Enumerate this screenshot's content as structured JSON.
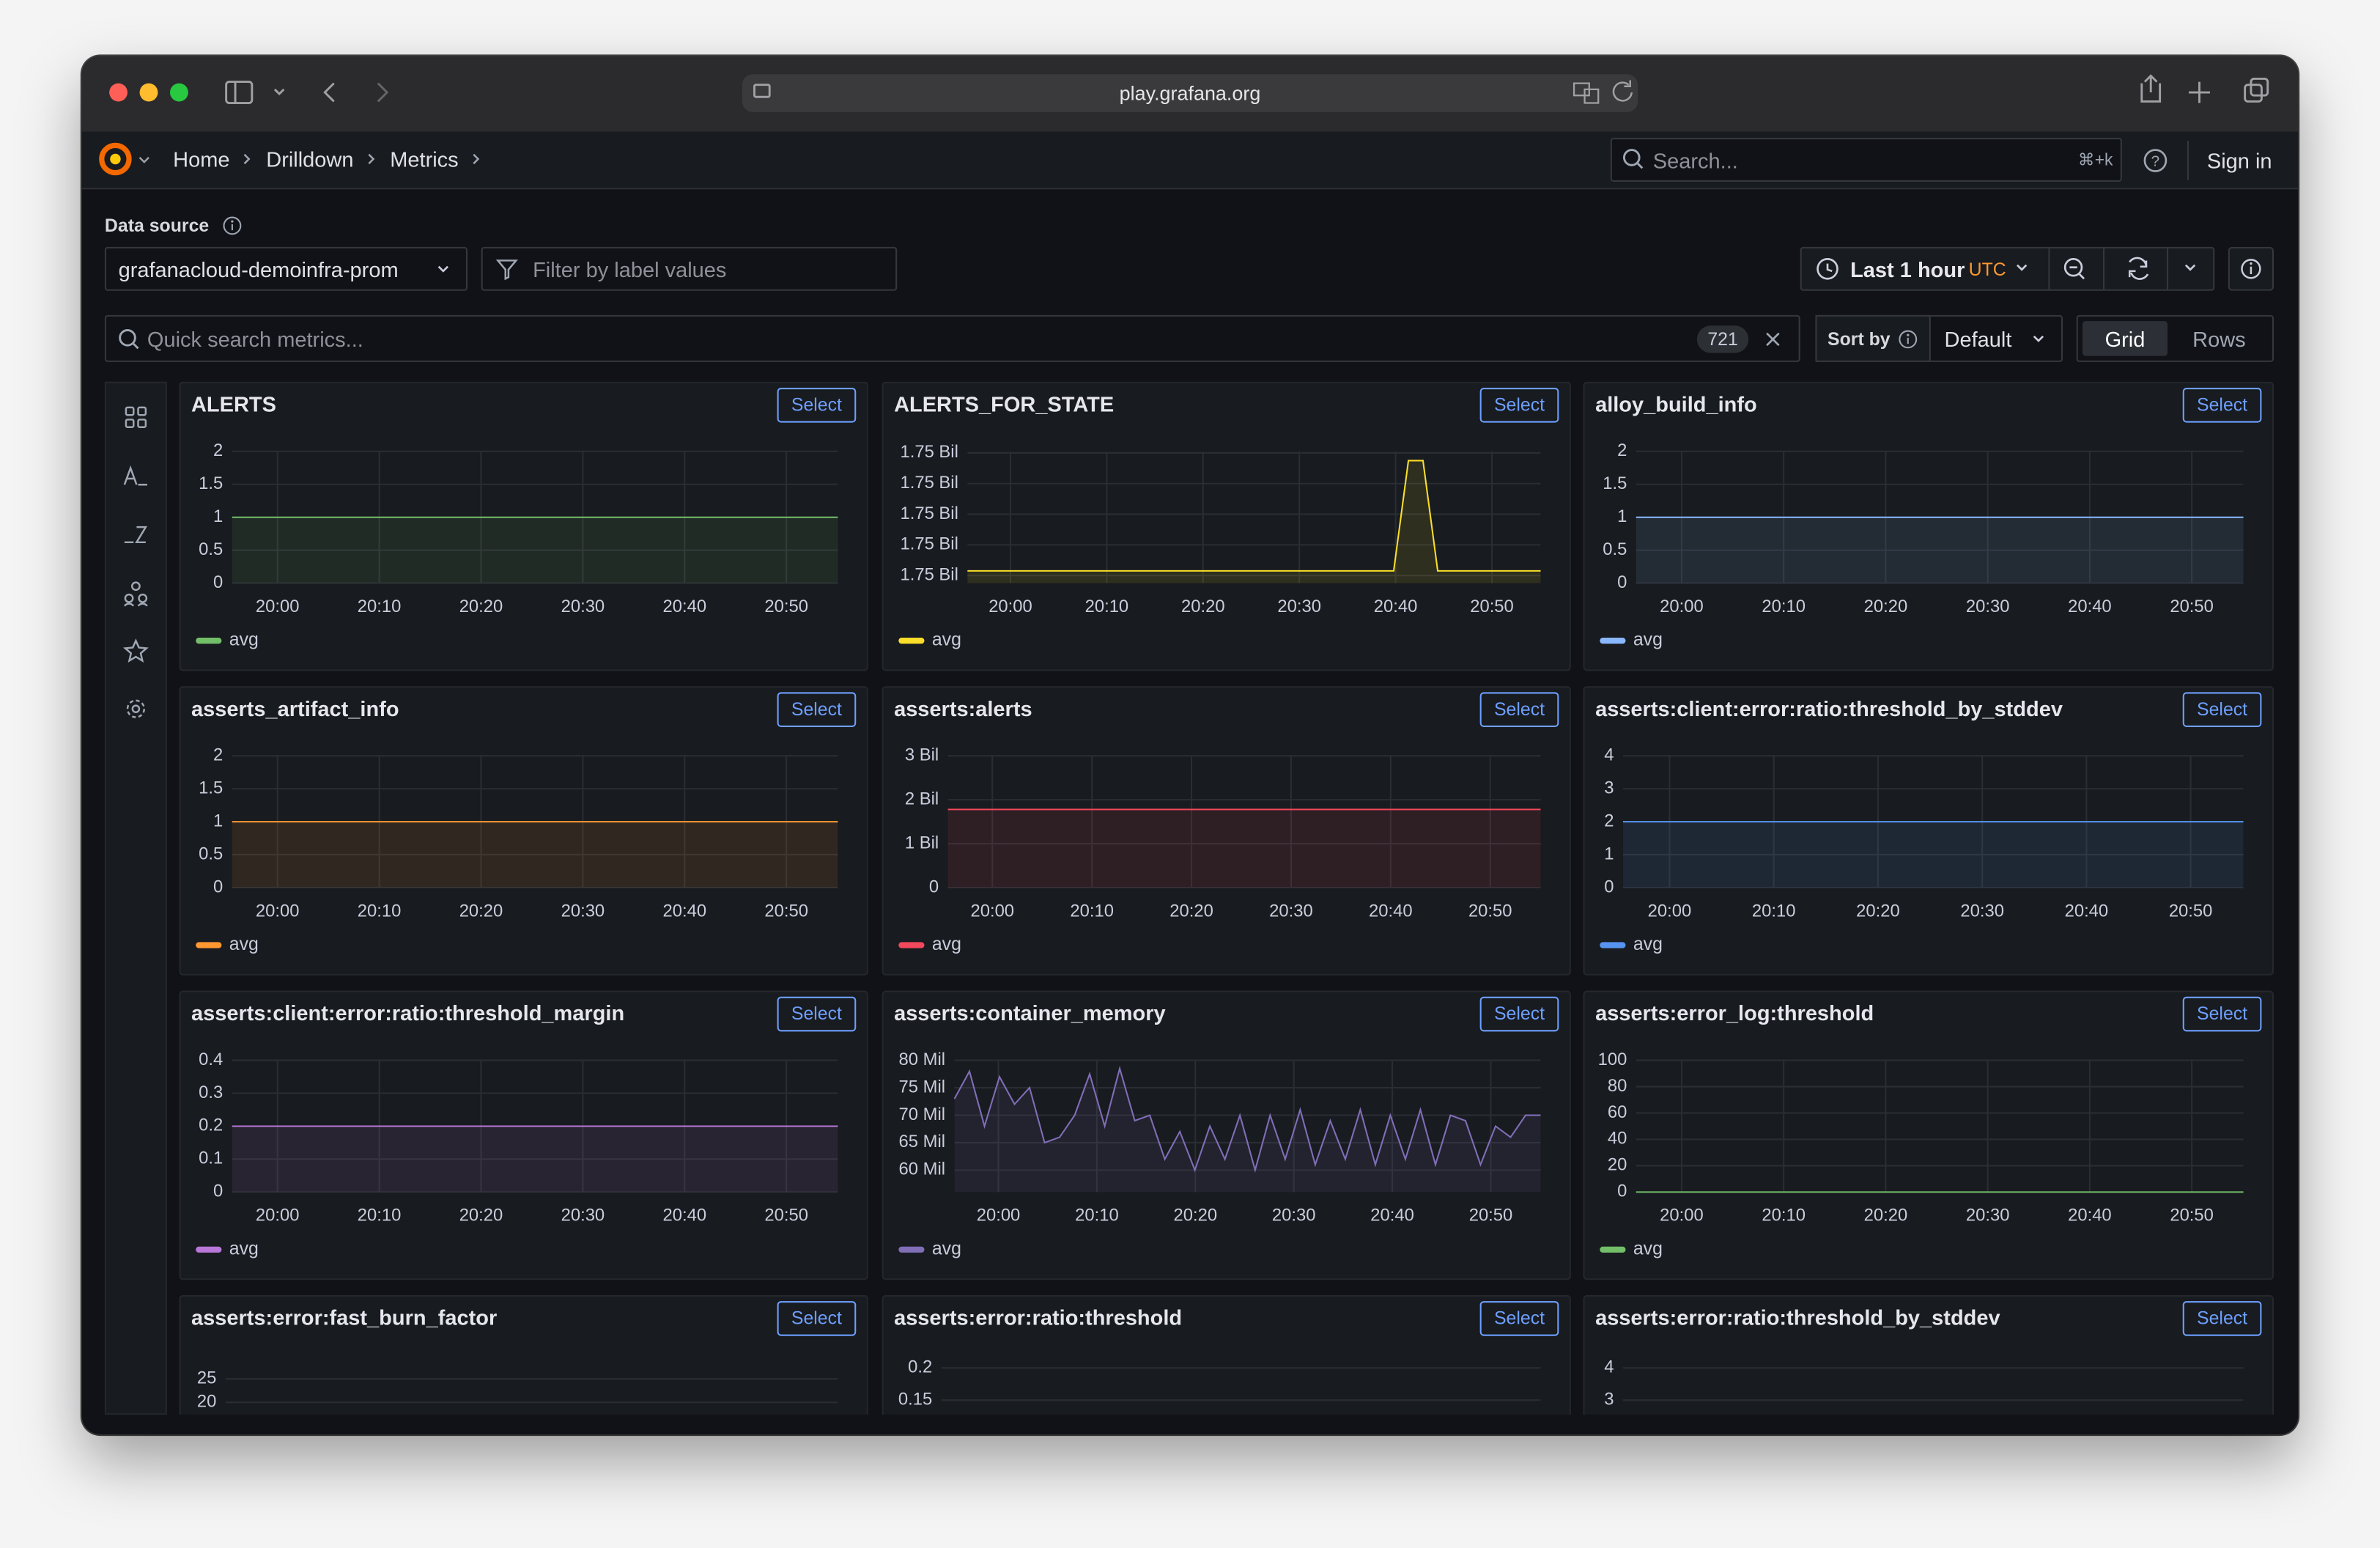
{
  "browser": {
    "url": "play.grafana.org"
  },
  "nav": {
    "breadcrumbs": [
      "Home",
      "Drilldown",
      "Metrics"
    ],
    "search_placeholder": "Search...",
    "search_shortcut": "⌘+k",
    "sign_in": "Sign in"
  },
  "toolbar": {
    "data_source_label": "Data source",
    "data_source": "grafanacloud-demoinfra-prom",
    "filter_placeholder": "Filter by label values",
    "time_range": "Last 1 hour",
    "timezone": "UTC",
    "search_placeholder": "Quick search metrics...",
    "metric_count": 721,
    "sort_label": "Sort by",
    "sort_value": "Default",
    "views": [
      "Grid",
      "Rows"
    ]
  },
  "panels": [
    {
      "title": "ALERTS",
      "button": "Select",
      "ylim": [
        0,
        2
      ],
      "yticks": [
        0,
        0.5,
        1,
        1.5,
        2
      ],
      "xticks": [
        "20:00",
        "20:10",
        "20:20",
        "20:30",
        "20:40",
        "20:50"
      ],
      "series": [
        {
          "name": "avg",
          "color": "#73bf69",
          "values": [
            1,
            1,
            1,
            1,
            1,
            1,
            1,
            1,
            1,
            1,
            1,
            1,
            1
          ]
        }
      ]
    },
    {
      "title": "ALERTS_FOR_STATE",
      "button": "Select",
      "ylim": [
        1749550000,
        1750410000
      ],
      "yticks": [
        {
          "value": 1749600000,
          "label": "1.75 Bil"
        },
        {
          "value": 1749800000,
          "label": "1.75 Bil"
        },
        {
          "value": 1750000000,
          "label": "1.75 Bil"
        },
        {
          "value": 1750200000,
          "label": "1.75 Bil"
        },
        {
          "value": 1750400000,
          "label": "1.75 Bil"
        }
      ],
      "xticks": [
        "20:00",
        "20:10",
        "20:20",
        "20:30",
        "20:40",
        "20:50"
      ],
      "series": [
        {
          "name": "avg",
          "color": "#fade2a",
          "values": [
            1749630000,
            1749630000,
            1749630000,
            1749630000,
            1749630000,
            1749630000,
            1749630000,
            1749630000,
            1749630000,
            1749630000,
            1749630000,
            1749630000,
            1749630000,
            1749630000,
            1749630000,
            1749630000,
            1749630000,
            1749630000,
            1749630000,
            1749630000,
            1749630000,
            1749630000,
            1749630000,
            1749630000,
            1749630000,
            1749630000,
            1749630000,
            1749630000,
            1749630000,
            1749630000,
            1750350000,
            1750350000,
            1749630000,
            1749630000,
            1749630000,
            1749630000,
            1749630000,
            1749630000,
            1749630000,
            1749630000
          ]
        }
      ]
    },
    {
      "title": "alloy_build_info",
      "button": "Select",
      "ylim": [
        0,
        2
      ],
      "yticks": [
        0,
        0.5,
        1,
        1.5,
        2
      ],
      "xticks": [
        "20:00",
        "20:10",
        "20:20",
        "20:30",
        "20:40",
        "20:50"
      ],
      "series": [
        {
          "name": "avg",
          "color": "#8ab8ff",
          "values": [
            1,
            1,
            1,
            1,
            1,
            1,
            1,
            1,
            1,
            1,
            1,
            1,
            1
          ]
        }
      ]
    },
    {
      "title": "asserts_artifact_info",
      "button": "Select",
      "ylim": [
        0,
        2
      ],
      "yticks": [
        0,
        0.5,
        1,
        1.5,
        2
      ],
      "xticks": [
        "20:00",
        "20:10",
        "20:20",
        "20:30",
        "20:40",
        "20:50"
      ],
      "series": [
        {
          "name": "avg",
          "color": "#ff9830",
          "values": [
            1,
            1,
            1,
            1,
            1,
            1,
            1,
            1,
            1,
            1,
            1,
            1,
            1
          ]
        }
      ]
    },
    {
      "title": "asserts:alerts",
      "button": "Select",
      "ylim": [
        0,
        3000000000
      ],
      "yticks": [
        0,
        {
          "value": 1000000000,
          "label": "1 Bil"
        },
        {
          "value": 2000000000,
          "label": "2 Bil"
        },
        {
          "value": 3000000000,
          "label": "3 Bil"
        }
      ],
      "xticks": [
        "20:00",
        "20:10",
        "20:20",
        "20:30",
        "20:40",
        "20:50"
      ],
      "series": [
        {
          "name": "avg",
          "color": "#f2495c",
          "values": [
            1780000000,
            1780000000,
            1780000000,
            1780000000,
            1780000000,
            1780000000,
            1780000000,
            1780000000,
            1780000000,
            1780000000,
            1780000000,
            1780000000,
            1780000000
          ]
        }
      ]
    },
    {
      "title": "asserts:client:error:ratio:threshold_by_stddev",
      "button": "Select",
      "ylim": [
        0,
        4
      ],
      "yticks": [
        0,
        1,
        2,
        3,
        4
      ],
      "xticks": [
        "20:00",
        "20:10",
        "20:20",
        "20:30",
        "20:40",
        "20:50"
      ],
      "series": [
        {
          "name": "avg",
          "color": "#5794f2",
          "values": [
            2,
            2,
            2,
            2,
            2,
            2,
            2,
            2,
            2,
            2,
            2,
            2,
            2
          ]
        }
      ]
    },
    {
      "title": "asserts:client:error:ratio:threshold_margin",
      "button": "Select",
      "ylim": [
        0,
        0.4
      ],
      "yticks": [
        0,
        0.1,
        0.2,
        0.3,
        0.4
      ],
      "xticks": [
        "20:00",
        "20:10",
        "20:20",
        "20:30",
        "20:40",
        "20:50"
      ],
      "series": [
        {
          "name": "avg",
          "color": "#b877d9",
          "values": [
            0.2,
            0.2,
            0.2,
            0.2,
            0.2,
            0.2,
            0.2,
            0.2,
            0.2,
            0.2,
            0.2,
            0.2,
            0.2
          ]
        }
      ]
    },
    {
      "title": "asserts:container_memory",
      "button": "Select",
      "ylim": [
        56000000,
        80000000
      ],
      "yticks": [
        {
          "value": 60000000,
          "label": "60 Mil"
        },
        {
          "value": 65000000,
          "label": "65 Mil"
        },
        {
          "value": 70000000,
          "label": "70 Mil"
        },
        {
          "value": 75000000,
          "label": "75 Mil"
        },
        {
          "value": 80000000,
          "label": "80 Mil"
        }
      ],
      "xticks": [
        "20:00",
        "20:10",
        "20:20",
        "20:30",
        "20:40",
        "20:50"
      ],
      "series": [
        {
          "name": "avg",
          "color": "#806eb7",
          "values": [
            73000000,
            78000000,
            68000000,
            77000000,
            72000000,
            75000000,
            65000000,
            66000000,
            70000000,
            77500000,
            68000000,
            78500000,
            69000000,
            70000000,
            62000000,
            67000000,
            60000000,
            68000000,
            62000000,
            70000000,
            60000000,
            70000000,
            62000000,
            71000000,
            61000000,
            69000000,
            62000000,
            71000000,
            61000000,
            70000000,
            62000000,
            71000000,
            61000000,
            70000000,
            69000000,
            61000000,
            68000000,
            66000000,
            70000000,
            70000000
          ]
        }
      ]
    },
    {
      "title": "asserts:error_log:threshold",
      "button": "Select",
      "ylim": [
        0,
        100
      ],
      "yticks": [
        0,
        20,
        40,
        60,
        80,
        100
      ],
      "xticks": [
        "20:00",
        "20:10",
        "20:20",
        "20:30",
        "20:40",
        "20:50"
      ],
      "series": [
        {
          "name": "avg",
          "color": "#73bf69",
          "values": [
            0,
            0,
            0,
            0,
            0,
            0,
            0,
            0,
            0,
            0,
            0,
            0,
            0
          ]
        }
      ]
    },
    {
      "title": "asserts:error:fast_burn_factor",
      "button": "Select",
      "ylim": [
        0,
        28
      ],
      "yticks": [
        20,
        25
      ]
    },
    {
      "title": "asserts:error:ratio:threshold",
      "button": "Select",
      "ylim": [
        0,
        0.205
      ],
      "yticks": [
        0.15,
        0.2
      ]
    },
    {
      "title": "asserts:error:ratio:threshold_by_stddev",
      "button": "Select",
      "ylim": [
        0,
        4.1
      ],
      "yticks": [
        3,
        4
      ]
    }
  ]
}
